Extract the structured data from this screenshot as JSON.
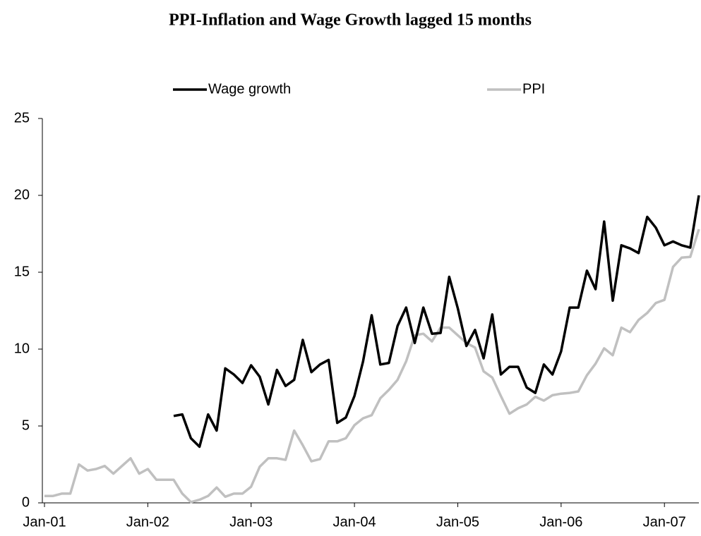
{
  "chart_data": {
    "type": "line",
    "title": "PPI-Inflation and Wage Growth lagged 15 months",
    "categories": [
      "Jan-01",
      null,
      null,
      null,
      null,
      null,
      null,
      null,
      null,
      null,
      null,
      null,
      "Jan-02",
      null,
      null,
      null,
      null,
      null,
      null,
      null,
      null,
      null,
      null,
      null,
      "Jan-03",
      null,
      null,
      null,
      null,
      null,
      null,
      null,
      null,
      null,
      null,
      null,
      "Jan-04",
      null,
      null,
      null,
      null,
      null,
      null,
      null,
      null,
      null,
      null,
      null,
      "Jan-05",
      null,
      null,
      null,
      null,
      null,
      null,
      null,
      null,
      null,
      null,
      null,
      "Jan-06",
      null,
      null,
      null,
      null,
      null,
      null,
      null,
      null,
      null,
      null,
      null,
      "Jan-07",
      null,
      null,
      null,
      null
    ],
    "series": [
      {
        "name": "Wage growth",
        "color": "#000000",
        "values": [
          null,
          null,
          null,
          null,
          null,
          null,
          null,
          null,
          null,
          null,
          null,
          null,
          null,
          null,
          null,
          5.65,
          5.75,
          4.2,
          3.65,
          5.75,
          4.7,
          8.75,
          8.35,
          7.8,
          8.95,
          8.2,
          6.4,
          8.65,
          7.6,
          8.0,
          10.6,
          8.5,
          9.0,
          9.3,
          5.2,
          5.55,
          6.95,
          9.2,
          12.2,
          9.0,
          9.1,
          11.5,
          12.7,
          10.4,
          12.7,
          11.0,
          11.05,
          14.7,
          12.65,
          10.2,
          11.25,
          9.4,
          12.25,
          8.35,
          8.85,
          8.85,
          7.5,
          7.15,
          9.0,
          8.35,
          9.85,
          12.7,
          12.7,
          15.1,
          13.9,
          18.3,
          13.15,
          16.75,
          16.55,
          16.25,
          18.6,
          17.9,
          16.75,
          17.0,
          16.75,
          16.6,
          20.0
        ]
      },
      {
        "name": "PPI",
        "color": "#c0c0c0",
        "values": [
          0.45,
          0.45,
          0.6,
          0.6,
          2.5,
          2.1,
          2.2,
          2.4,
          1.9,
          2.4,
          2.9,
          1.9,
          2.2,
          1.5,
          1.5,
          1.5,
          0.6,
          0.05,
          0.2,
          0.45,
          1.0,
          0.4,
          0.6,
          0.6,
          1.05,
          2.35,
          2.9,
          2.9,
          2.8,
          4.7,
          3.75,
          2.7,
          2.85,
          4.0,
          4.0,
          4.2,
          5.05,
          5.5,
          5.7,
          6.8,
          7.35,
          8.0,
          9.2,
          10.9,
          11.0,
          10.5,
          11.4,
          11.4,
          10.9,
          10.4,
          10.1,
          8.55,
          8.15,
          6.95,
          5.8,
          6.15,
          6.4,
          6.9,
          6.65,
          7.0,
          7.1,
          7.15,
          7.25,
          8.3,
          9.05,
          10.05,
          9.6,
          11.4,
          11.1,
          11.9,
          12.35,
          13.0,
          13.2,
          15.35,
          15.95,
          16.0,
          17.8
        ]
      }
    ],
    "ylim": [
      0,
      25
    ],
    "yticks": [
      0,
      5,
      10,
      15,
      20,
      25
    ],
    "grid": false,
    "legend": "top"
  }
}
